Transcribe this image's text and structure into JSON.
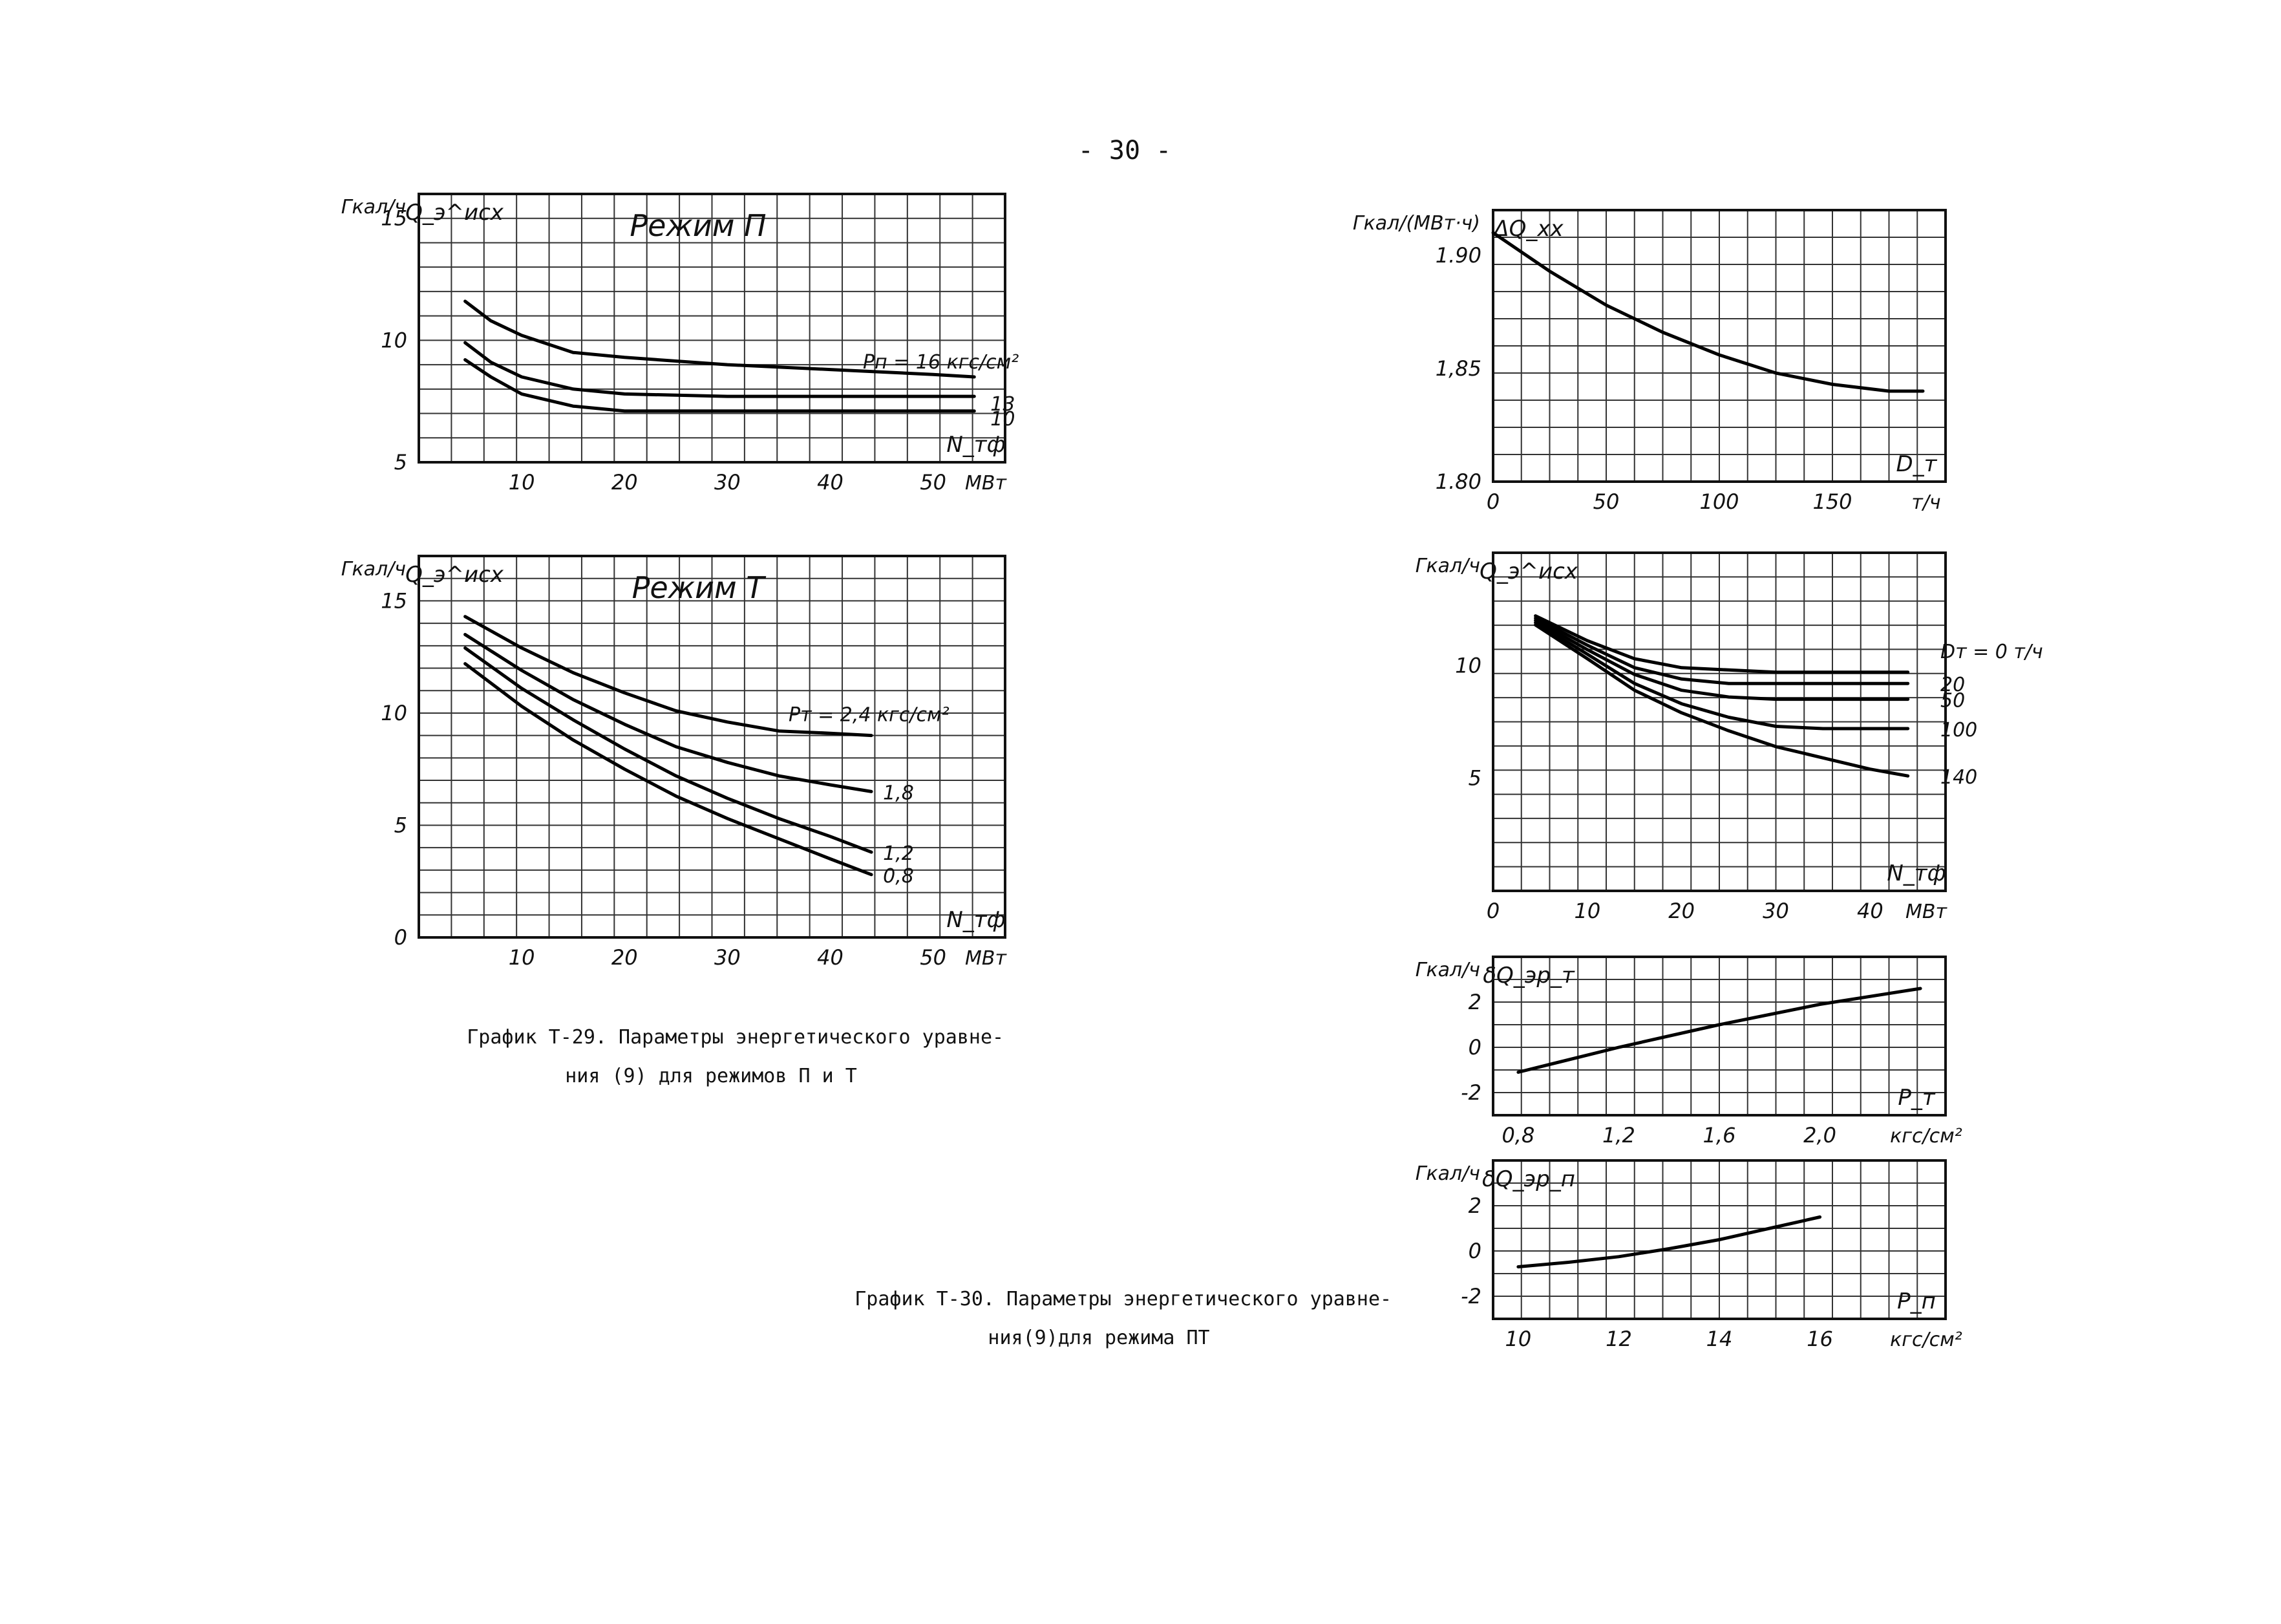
{
  "page_number": "- 30 -",
  "captions": {
    "t29_line1": "График Т-29. Параметры энергетического уравне-",
    "t29_line2": "ния (9) для режимов П и Т",
    "t30_line1": "График Т-30. Параметры энергетического уравне-",
    "t30_line2": "ния(9)для режима ПТ"
  },
  "chart_data": [
    {
      "id": "p_mode",
      "type": "line",
      "title": "Режим П",
      "ylabel": "Гкал/ч",
      "y_quantity": "Q_э^исх",
      "xlabel": "N_тф",
      "x_unit": "МВт",
      "xlim": [
        0,
        57
      ],
      "ylim": [
        5,
        16
      ],
      "grid": true,
      "x_ticks": [
        10,
        20,
        30,
        40,
        50
      ],
      "y_ticks": [
        5,
        10,
        15
      ],
      "x_tick_labels": [
        "10",
        "20",
        "30",
        "40",
        "50"
      ],
      "y_tick_labels": [
        "5",
        "10",
        "15"
      ],
      "series": [
        {
          "name": "Pп = 16 кгс/см²",
          "x": [
            4.5,
            7,
            10,
            15,
            20,
            30,
            40,
            50,
            54
          ],
          "y": [
            11.6,
            10.8,
            10.2,
            9.5,
            9.3,
            9.0,
            8.8,
            8.6,
            8.5
          ]
        },
        {
          "name": "13",
          "x": [
            4.5,
            7,
            10,
            15,
            20,
            30,
            40,
            50,
            54
          ],
          "y": [
            9.9,
            9.1,
            8.5,
            8.0,
            7.8,
            7.7,
            7.7,
            7.7,
            7.7
          ]
        },
        {
          "name": "10",
          "x": [
            4.5,
            7,
            10,
            15,
            20,
            30,
            40,
            50,
            54
          ],
          "y": [
            9.2,
            8.5,
            7.8,
            7.3,
            7.1,
            7.1,
            7.1,
            7.1,
            7.1
          ]
        }
      ]
    },
    {
      "id": "t_mode",
      "type": "line",
      "title": "Режим Т",
      "ylabel": "Гкал/ч",
      "y_quantity": "Q_э^исх",
      "xlabel": "N_тф",
      "x_unit": "МВт",
      "xlim": [
        0,
        57
      ],
      "ylim": [
        0,
        17
      ],
      "grid": true,
      "x_ticks": [
        10,
        20,
        30,
        40,
        50
      ],
      "y_ticks": [
        0,
        5,
        10,
        15
      ],
      "x_tick_labels": [
        "10",
        "20",
        "30",
        "40",
        "50"
      ],
      "y_tick_labels": [
        "0",
        "5",
        "10",
        "15"
      ],
      "series": [
        {
          "name": "Pт = 2,4 кгс/см²",
          "x": [
            4.5,
            10,
            15,
            20,
            25,
            30,
            35,
            40,
            44
          ],
          "y": [
            14.3,
            12.9,
            11.8,
            10.9,
            10.1,
            9.6,
            9.2,
            9.1,
            9.0
          ]
        },
        {
          "name": "1,8",
          "x": [
            4.5,
            10,
            15,
            20,
            25,
            30,
            35,
            40,
            44
          ],
          "y": [
            13.5,
            11.9,
            10.6,
            9.5,
            8.5,
            7.8,
            7.2,
            6.8,
            6.5
          ]
        },
        {
          "name": "1,2",
          "x": [
            4.5,
            10,
            15,
            20,
            25,
            30,
            35,
            40,
            44
          ],
          "y": [
            12.9,
            11.1,
            9.7,
            8.4,
            7.2,
            6.2,
            5.3,
            4.5,
            3.8
          ]
        },
        {
          "name": "0,8",
          "x": [
            4.5,
            10,
            15,
            20,
            25,
            30,
            35,
            40,
            44
          ],
          "y": [
            12.2,
            10.3,
            8.8,
            7.5,
            6.3,
            5.3,
            4.4,
            3.5,
            2.8
          ]
        }
      ]
    },
    {
      "id": "delta_q_xx",
      "type": "line",
      "ylabel": "Гкал/(МВт·ч)",
      "y_quantity": "ΔQ_хх",
      "xlabel": "D_т",
      "x_unit": "т/ч",
      "xlim": [
        0,
        200
      ],
      "ylim": [
        1.8,
        1.92
      ],
      "grid": true,
      "x_ticks": [
        0,
        50,
        100,
        150
      ],
      "y_ticks": [
        1.8,
        1.85,
        1.9
      ],
      "x_tick_labels": [
        "0",
        "50",
        "100",
        "150"
      ],
      "y_tick_labels": [
        "1.80",
        "1,85",
        "1.90"
      ],
      "series": [
        {
          "name": "",
          "x": [
            0,
            25,
            50,
            75,
            100,
            125,
            150,
            175,
            190
          ],
          "y": [
            1.91,
            1.893,
            1.878,
            1.866,
            1.856,
            1.848,
            1.843,
            1.84,
            1.84
          ]
        }
      ]
    },
    {
      "id": "pt_mode",
      "type": "line",
      "ylabel": "Гкал/ч",
      "y_quantity": "Q_э^исх",
      "xlabel": "N_тф",
      "x_unit": "МВт",
      "xlim": [
        0,
        48
      ],
      "ylim": [
        0,
        15
      ],
      "grid": true,
      "x_ticks": [
        0,
        10,
        20,
        30,
        40
      ],
      "y_ticks": [
        5,
        10
      ],
      "x_tick_labels": [
        "0",
        "10",
        "20",
        "30",
        "40"
      ],
      "y_tick_labels": [
        "5",
        "10"
      ],
      "series": [
        {
          "name": "Dт = 0 т/ч",
          "x": [
            4.5,
            10,
            15,
            20,
            25,
            30,
            35,
            40,
            44
          ],
          "y": [
            12.2,
            11.1,
            10.3,
            9.9,
            9.8,
            9.7,
            9.7,
            9.7,
            9.7
          ]
        },
        {
          "name": "20",
          "x": [
            4.5,
            10,
            15,
            20,
            25,
            30,
            35,
            40,
            44
          ],
          "y": [
            12.1,
            10.9,
            9.9,
            9.4,
            9.2,
            9.2,
            9.2,
            9.2,
            9.2
          ]
        },
        {
          "name": "50",
          "x": [
            4.5,
            10,
            15,
            20,
            25,
            30,
            35,
            40,
            44
          ],
          "y": [
            12.0,
            10.7,
            9.6,
            8.9,
            8.6,
            8.5,
            8.5,
            8.5,
            8.5
          ]
        },
        {
          "name": "100",
          "x": [
            4.5,
            10,
            15,
            20,
            25,
            30,
            35,
            40,
            44
          ],
          "y": [
            11.9,
            10.5,
            9.2,
            8.3,
            7.7,
            7.3,
            7.2,
            7.2,
            7.2
          ]
        },
        {
          "name": "140",
          "x": [
            4.5,
            10,
            15,
            20,
            25,
            30,
            35,
            40,
            44
          ],
          "y": [
            11.8,
            10.3,
            8.9,
            7.9,
            7.1,
            6.4,
            5.9,
            5.4,
            5.1
          ]
        }
      ]
    },
    {
      "id": "delta_q_pt",
      "type": "line",
      "ylabel": "Гкал/ч",
      "y_quantity": "δQ_эр_т",
      "xlabel": "P_т",
      "x_unit": "кгс/см²",
      "xlim": [
        0.7,
        2.5
      ],
      "ylim": [
        -3,
        4
      ],
      "grid": true,
      "x_ticks": [
        0.8,
        1.2,
        1.6,
        2.0
      ],
      "y_ticks": [
        -2,
        0,
        2
      ],
      "x_tick_labels": [
        "0,8",
        "1,2",
        "1,6",
        "2,0"
      ],
      "y_tick_labels": [
        "-2",
        "0",
        "2"
      ],
      "series": [
        {
          "name": "",
          "x": [
            0.8,
            1.2,
            1.6,
            2.0,
            2.4
          ],
          "y": [
            -1.1,
            0.0,
            1.0,
            1.9,
            2.6
          ]
        }
      ]
    },
    {
      "id": "delta_q_pp",
      "type": "line",
      "ylabel": "Гкал/ч",
      "y_quantity": "δQ_эр_п",
      "xlabel": "P_п",
      "x_unit": "кгс/см²",
      "xlim": [
        9.5,
        18.5
      ],
      "ylim": [
        -3,
        4
      ],
      "grid": true,
      "x_ticks": [
        10,
        12,
        14,
        16
      ],
      "y_ticks": [
        -2,
        0,
        2
      ],
      "x_tick_labels": [
        "10",
        "12",
        "14",
        "16"
      ],
      "y_tick_labels": [
        "-2",
        "0",
        "2"
      ],
      "series": [
        {
          "name": "",
          "x": [
            10,
            11,
            12,
            13,
            14,
            15,
            16
          ],
          "y": [
            -0.7,
            -0.5,
            -0.25,
            0.1,
            0.5,
            1.0,
            1.5
          ]
        }
      ]
    }
  ]
}
